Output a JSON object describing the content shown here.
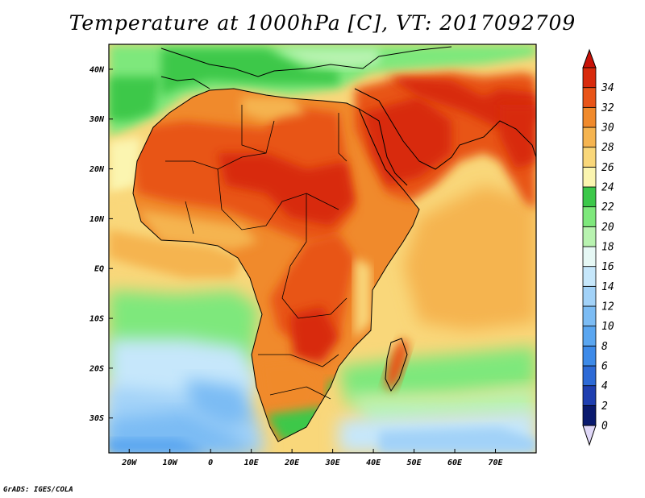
{
  "title": "Temperature at 1000hPa [C], VT: 2017092709",
  "credit": "GrADS: IGES/COLA",
  "map": {
    "projection": "latlon",
    "lon_range": [
      -25,
      80
    ],
    "lat_range": [
      -37,
      45
    ],
    "lon_ticks": [
      {
        "value": -20,
        "label": "20W"
      },
      {
        "value": -10,
        "label": "10W"
      },
      {
        "value": 0,
        "label": "0"
      },
      {
        "value": 10,
        "label": "10E"
      },
      {
        "value": 20,
        "label": "20E"
      },
      {
        "value": 30,
        "label": "30E"
      },
      {
        "value": 40,
        "label": "40E"
      },
      {
        "value": 50,
        "label": "50E"
      },
      {
        "value": 60,
        "label": "60E"
      },
      {
        "value": 70,
        "label": "70E"
      }
    ],
    "lat_ticks": [
      {
        "value": 40,
        "label": "40N"
      },
      {
        "value": 30,
        "label": "30N"
      },
      {
        "value": 20,
        "label": "20N"
      },
      {
        "value": 10,
        "label": "10N"
      },
      {
        "value": 0,
        "label": "EQ"
      },
      {
        "value": -10,
        "label": "10S"
      },
      {
        "value": -20,
        "label": "20S"
      },
      {
        "value": -30,
        "label": "30S"
      }
    ]
  },
  "colorbar": {
    "units": "C",
    "levels": [
      0,
      2,
      4,
      6,
      8,
      10,
      12,
      14,
      16,
      18,
      20,
      22,
      24,
      26,
      28,
      30,
      32,
      34
    ],
    "colors": [
      "#0a1a6e",
      "#1f3fb0",
      "#2d6ad6",
      "#3d8ae8",
      "#5aa6f0",
      "#7cbcf4",
      "#a2d2f8",
      "#c6e7fb",
      "#e6f8f5",
      "#b8f3b0",
      "#7ee87c",
      "#3cc84a",
      "#fbf5b0",
      "#f9d77a",
      "#f5b450",
      "#f08a2c",
      "#e85418",
      "#d82a0c"
    ],
    "under_color": "#e0d8f8",
    "over_color": "#c81208"
  }
}
